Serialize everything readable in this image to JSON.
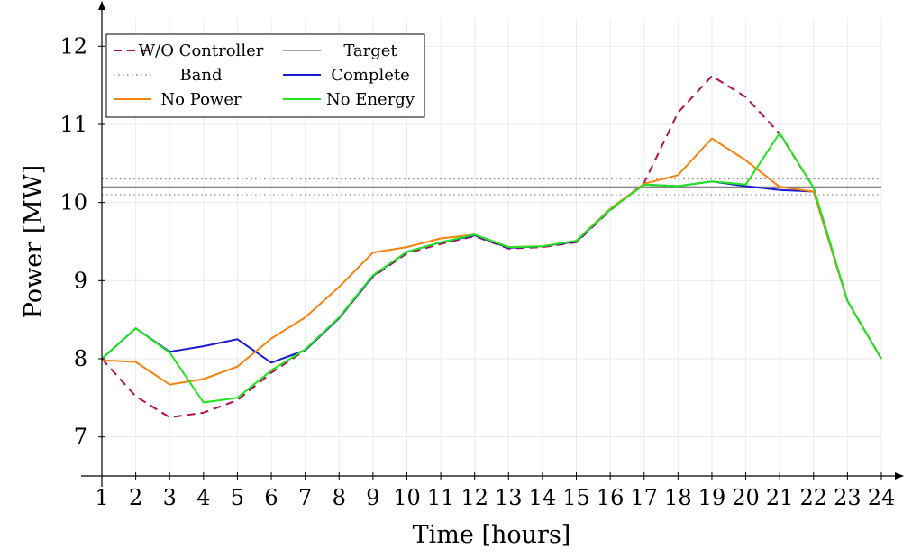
{
  "chart_data": {
    "type": "line",
    "title": "",
    "xlabel": "Time [hours]",
    "ylabel": "Power [MW]",
    "xlim": [
      1,
      24
    ],
    "ylim": [
      6.5,
      12.5
    ],
    "xticks": [
      "1",
      "2",
      "3",
      "4",
      "5",
      "6",
      "7",
      "8",
      "9",
      "10",
      "11",
      "12",
      "13",
      "14",
      "15",
      "16",
      "17",
      "18",
      "19",
      "20",
      "21",
      "22",
      "23",
      "24"
    ],
    "yticks": [
      "7",
      "8",
      "9",
      "10",
      "11",
      "12"
    ],
    "grid": true,
    "legend_position": "top-left",
    "x": [
      1,
      2,
      3,
      4,
      5,
      6,
      7,
      8,
      9,
      10,
      11,
      12,
      13,
      14,
      15,
      16,
      17,
      18,
      19,
      20,
      21,
      22,
      23,
      24
    ],
    "series": [
      {
        "name": "W/O Controller",
        "style": "dashed",
        "color": "#b0104f",
        "values": [
          8.0,
          7.52,
          7.25,
          7.31,
          7.47,
          7.82,
          8.11,
          8.52,
          9.05,
          9.35,
          9.47,
          9.57,
          9.41,
          9.43,
          9.49,
          9.9,
          10.25,
          11.15,
          11.62,
          11.35,
          10.88,
          10.19,
          8.74,
          8.0
        ]
      },
      {
        "name": "Target",
        "style": "solid",
        "color": "#707070",
        "constant": 10.2
      },
      {
        "name": "Band",
        "style": "dotted",
        "color": "#707070",
        "constant_lower": 10.1,
        "constant_upper": 10.3
      },
      {
        "name": "Complete",
        "style": "solid",
        "color": "#1a1ad0",
        "values": [
          8.0,
          8.39,
          8.09,
          8.16,
          8.25,
          7.95,
          8.11,
          8.52,
          9.06,
          9.37,
          9.49,
          9.58,
          9.42,
          9.44,
          9.5,
          9.91,
          10.23,
          10.21,
          10.27,
          10.21,
          10.16,
          10.14,
          8.74,
          8.0
        ]
      },
      {
        "name": "No Power",
        "style": "solid",
        "color": "#f5830f",
        "values": [
          7.98,
          7.96,
          7.67,
          7.74,
          7.9,
          8.26,
          8.53,
          8.92,
          9.36,
          9.43,
          9.54,
          9.59,
          9.43,
          9.44,
          9.51,
          9.92,
          10.24,
          10.35,
          10.82,
          10.54,
          10.2,
          10.14,
          8.74,
          8.0
        ]
      },
      {
        "name": "No Energy",
        "style": "solid",
        "color": "#1ee51e",
        "values": [
          8.0,
          8.39,
          8.08,
          7.44,
          7.5,
          7.85,
          8.12,
          8.53,
          9.07,
          9.37,
          9.49,
          9.59,
          9.43,
          9.44,
          9.51,
          9.91,
          10.23,
          10.21,
          10.27,
          10.23,
          10.89,
          10.19,
          8.74,
          8.0
        ]
      }
    ]
  }
}
